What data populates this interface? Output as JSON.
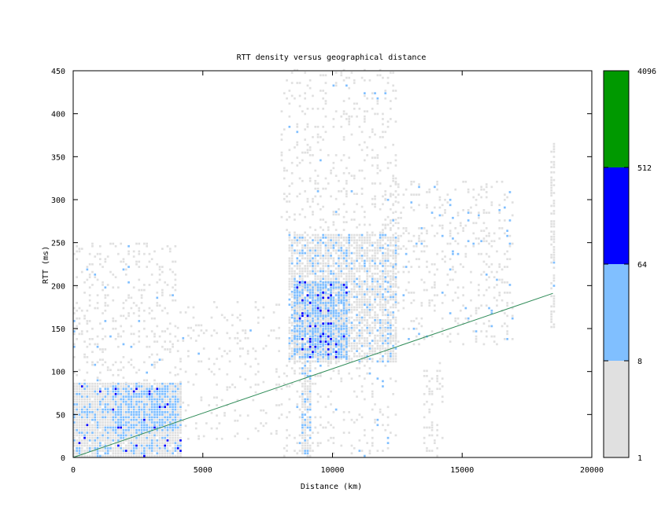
{
  "chart_data": {
    "type": "heatmap",
    "title": "RTT density versus geographical distance",
    "xlabel": "Distance (km)",
    "ylabel": "RTT (ms)",
    "xlim": [
      0,
      20000
    ],
    "ylim": [
      0,
      450
    ],
    "x_ticks": [
      0,
      5000,
      10000,
      15000,
      20000
    ],
    "y_ticks": [
      0,
      50,
      100,
      150,
      200,
      250,
      300,
      350,
      400,
      450
    ],
    "bin_size": {
      "x_km": 100,
      "y_ms": 3
    },
    "grid": false,
    "colorbar": {
      "scale": "log",
      "placement": "right",
      "ticks": [
        "1",
        "8",
        "64",
        "512",
        "4096"
      ],
      "levels": [
        {
          "range": [
            1,
            8
          ],
          "color": "#e0e0e0"
        },
        {
          "range": [
            8,
            64
          ],
          "color": "#80bfff"
        },
        {
          "range": [
            64,
            512
          ],
          "color": "#0000ff"
        },
        {
          "range": [
            512,
            4096
          ],
          "color": "#009900"
        }
      ]
    },
    "density_regions": [
      {
        "x": [
          0,
          4200
        ],
        "y": [
          0,
          85
        ],
        "gray": 0.7,
        "light": 0.25,
        "dark": 0.01
      },
      {
        "x": [
          1500,
          4000
        ],
        "y": [
          30,
          80
        ],
        "gray": 0.4,
        "light": 0.5,
        "dark": 0.02
      },
      {
        "x": [
          0,
          4000
        ],
        "y": [
          85,
          250
        ],
        "gray": 0.14,
        "light": 0.01,
        "dark": 0
      },
      {
        "x": [
          4000,
          8000
        ],
        "y": [
          20,
          180
        ],
        "gray": 0.07,
        "light": 0.003,
        "dark": 0
      },
      {
        "x": [
          8300,
          12500
        ],
        "y": [
          110,
          260
        ],
        "gray": 0.6,
        "light": 0.15,
        "dark": 0
      },
      {
        "x": [
          8500,
          10600
        ],
        "y": [
          115,
          205
        ],
        "gray": 0.3,
        "light": 0.55,
        "dark": 0.06
      },
      {
        "x": [
          8800,
          9200
        ],
        "y": [
          0,
          110
        ],
        "gray": 0.6,
        "light": 0.2,
        "dark": 0
      },
      {
        "x": [
          8000,
          12500
        ],
        "y": [
          0,
          110
        ],
        "gray": 0.1,
        "light": 0.005,
        "dark": 0
      },
      {
        "x": [
          8000,
          12500
        ],
        "y": [
          260,
          450
        ],
        "gray": 0.12,
        "light": 0.003,
        "dark": 0
      },
      {
        "x": [
          12000,
          17000
        ],
        "y": [
          130,
          320
        ],
        "gray": 0.12,
        "light": 0.02,
        "dark": 0
      },
      {
        "x": [
          13500,
          14300
        ],
        "y": [
          0,
          110
        ],
        "gray": 0.2,
        "light": 0,
        "dark": 0
      },
      {
        "x": [
          18400,
          18600
        ],
        "y": [
          150,
          365
        ],
        "gray": 0.4,
        "light": 0.02,
        "dark": 0
      }
    ],
    "reference_line": {
      "color": "#2e8b57",
      "points": [
        [
          0,
          0
        ],
        [
          18500,
          191
        ]
      ]
    }
  }
}
